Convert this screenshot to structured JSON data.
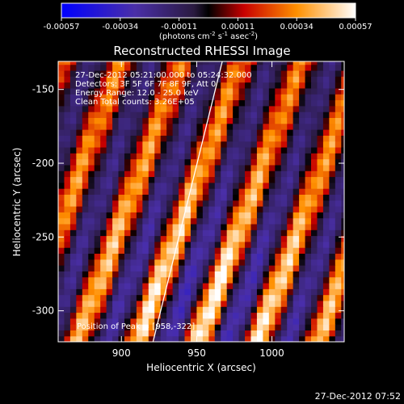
{
  "chart_data": {
    "type": "heatmap",
    "title": "Reconstructed RHESSI Image",
    "xlabel": "Heliocentric X (arcsec)",
    "ylabel": "Heliocentric Y (arcsec)",
    "xlim": [
      858,
      1048
    ],
    "ylim": [
      -321,
      -131
    ],
    "x_ticks": [
      900,
      950,
      1000
    ],
    "y_ticks": [
      -150,
      -200,
      -250,
      -300
    ],
    "colorbar": {
      "ticks": [
        "-0.00057",
        "-0.00034",
        "-0.00011",
        "0.00011",
        "0.00034",
        "0.00057"
      ],
      "range": [
        -0.00057,
        0.00057
      ],
      "unit_label": "(photons cm",
      "unit_exp1": "-2",
      "unit_mid": " s",
      "unit_exp2": "-1",
      "unit_end": " asec",
      "unit_exp3": "-2",
      "unit_close": ")"
    },
    "annotations": [
      "27-Dec-2012 05:21:00.000 to 05:24:32.000",
      "Detectors: 3F 5F 6F 7F 8F 9F, Att 0",
      "Energy Range: 12.0 - 25.0 keV",
      "Clean     Total counts: 3.26E+05"
    ],
    "peak_label": "Position of Peak = [958,-322]",
    "limb_line": {
      "x": [
        921,
        967
      ],
      "y": [
        -321,
        -131
      ]
    },
    "stripes": {
      "angle_deg": 20,
      "period_arcsec": 40,
      "peak_x_at_y_minus300": 958
    }
  },
  "footer": {
    "timestamp": "27-Dec-2012 07:52"
  }
}
